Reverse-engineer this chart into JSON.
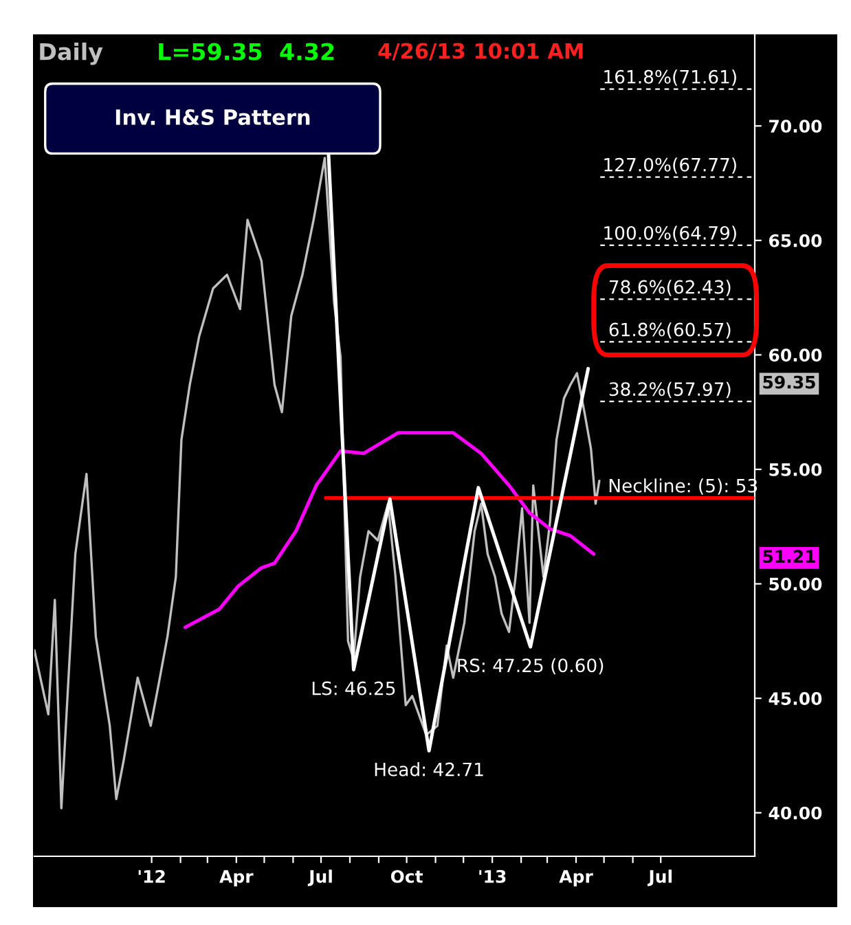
{
  "chart_data": {
    "type": "line",
    "title": "Daily",
    "subtitle": "L=59.35  4.32",
    "annotations": [
      "Inv. H&S Pattern",
      "4/26/13 10:01 AM",
      {
        "text": "161.8%(71.61)",
        "x": "2013-07-11",
        "y": 71.61
      },
      {
        "text": "127.0%(67.77)",
        "x": "2013-07-11",
        "y": 67.77
      },
      {
        "text": "100.0%(64.79)",
        "x": "2013-07-11",
        "y": 64.79
      },
      {
        "text": "78.6%(62.43)",
        "x": "2013-07-11",
        "y": 62.43
      },
      {
        "text": "61.8%(60.57)",
        "x": "2013-07-11",
        "y": 60.57
      },
      {
        "text": "38.2%(57.97)",
        "x": "2013-07-11",
        "y": 57.97
      },
      {
        "text": "Neckline: (5): 53",
        "x": "2013-07-25",
        "y": 53.75
      },
      {
        "text": "LS: 46.25",
        "x": "2012-08-05",
        "y": 46.25
      },
      {
        "text": "Head: 42.71",
        "x": "2012-10-25",
        "y": 42.71
      },
      {
        "text": "RS: 47.25 (0.60)",
        "x": "2013-02-11",
        "y": 47.25
      },
      "59.35",
      "51.21"
    ],
    "series": [
      {
        "color": "#c0c0c0",
        "x": [
          "2011-08-28",
          "2011-09-12",
          "2011-09-19",
          "2011-09-26",
          "2011-10-11",
          "2011-10-23",
          "2011-11-02",
          "2011-11-17",
          "2011-11-24",
          "2011-12-02",
          "2011-12-17",
          "2011-12-31",
          "2012-01-08",
          "2012-01-18",
          "2012-01-27",
          "2012-02-02",
          "2012-02-11",
          "2012-02-21",
          "2012-03-07",
          "2012-03-22",
          "2012-04-05",
          "2012-04-13",
          "2012-04-28",
          "2012-05-12",
          "2012-05-20",
          "2012-05-30",
          "2012-06-11",
          "2012-06-23",
          "2012-07-05",
          "2012-07-15",
          "2012-07-22",
          "2012-07-30",
          "2012-08-05",
          "2012-08-12",
          "2012-08-21",
          "2012-08-31",
          "2012-09-11",
          "2012-09-19",
          "2012-09-30",
          "2012-10-07",
          "2012-10-22",
          "2012-11-03",
          "2012-11-13",
          "2012-11-20",
          "2012-12-02",
          "2012-12-13",
          "2012-12-20",
          "2012-12-27",
          "2013-01-04",
          "2013-01-11",
          "2013-01-19",
          "2013-01-26",
          "2013-02-02",
          "2013-02-10",
          "2013-02-14",
          "2013-02-25",
          "2013-03-04",
          "2013-03-11",
          "2013-03-19",
          "2013-03-26",
          "2013-04-02",
          "2013-04-10",
          "2013-04-17",
          "2013-04-22",
          "2013-04-26"
        ],
        "values": [
          47.1,
          44.3,
          49.3,
          40.2,
          51.3,
          54.8,
          47.7,
          43.8,
          40.6,
          42.3,
          45.9,
          43.8,
          45.5,
          47.7,
          50.3,
          56.3,
          58.7,
          60.8,
          62.9,
          63.5,
          62.0,
          65.9,
          64.1,
          58.7,
          57.5,
          61.7,
          63.5,
          65.9,
          68.6,
          62.3,
          59.9,
          47.5,
          46.7,
          50.3,
          52.3,
          51.9,
          53.5,
          50.3,
          44.7,
          45.1,
          43.4,
          43.8,
          47.3,
          45.9,
          48.3,
          52.3,
          53.5,
          51.3,
          50.3,
          48.7,
          47.9,
          50.3,
          53.3,
          48.3,
          54.3,
          50.3,
          52.7,
          56.3,
          58.1,
          58.7,
          59.2,
          57.5,
          55.9,
          53.5,
          54.5
        ]
      },
      {
        "color": "#ff00ff",
        "x": [
          "2012-02-06",
          "2012-03-14",
          "2012-04-03",
          "2012-04-28",
          "2012-05-12",
          "2012-06-04",
          "2012-06-26",
          "2012-07-22",
          "2012-08-16",
          "2012-09-22",
          "2012-11-20",
          "2012-12-20",
          "2013-01-19",
          "2013-02-10",
          "2013-03-04",
          "2013-03-26",
          "2013-04-20"
        ],
        "values": [
          48.1,
          48.9,
          49.9,
          50.7,
          50.9,
          52.3,
          54.3,
          55.8,
          55.7,
          56.6,
          56.6,
          55.7,
          54.3,
          53.1,
          52.4,
          52.1,
          51.3
        ]
      },
      {
        "color": "#ff0000",
        "x": [
          "2012-07-06",
          "2013-10-08"
        ],
        "values": [
          53.75,
          53.75
        ]
      },
      {
        "color": "#ffffff",
        "x": [
          "2012-07-09",
          "2012-08-05",
          "2012-09-13",
          "2012-10-25",
          "2012-12-17",
          "2013-02-11",
          "2013-04-14"
        ],
        "values": [
          68.8,
          46.25,
          53.7,
          42.71,
          54.2,
          47.25,
          59.4
        ]
      },
      {
        "color": "#ffffff",
        "line_style": "dashed",
        "x": [
          "2013-04-27",
          "2013-10-08"
        ],
        "values": [
          71.61,
          71.61
        ]
      },
      {
        "color": "#ffffff",
        "line_style": "dashed",
        "x": [
          "2013-04-27",
          "2013-10-08"
        ],
        "values": [
          67.77,
          67.77
        ]
      },
      {
        "color": "#ffffff",
        "line_style": "dashed",
        "x": [
          "2013-04-27",
          "2013-10-08"
        ],
        "values": [
          64.79,
          64.79
        ]
      },
      {
        "color": "#ffffff",
        "line_style": "dashed",
        "x": [
          "2013-04-27",
          "2013-10-08"
        ],
        "values": [
          62.43,
          62.43
        ]
      },
      {
        "color": "#ffffff",
        "line_style": "dashed",
        "x": [
          "2013-04-27",
          "2013-10-08"
        ],
        "values": [
          60.57,
          60.57
        ]
      },
      {
        "color": "#ffffff",
        "line_style": "dashed",
        "x": [
          "2013-04-27",
          "2013-10-08"
        ],
        "values": [
          57.97,
          57.97
        ]
      }
    ],
    "xlim": [
      "2011-08-28",
      "2013-10-10"
    ],
    "xticks": [
      {
        "value": "2012-01-01",
        "label": "'12"
      },
      {
        "value": "2012-02-01",
        "label": null
      },
      {
        "value": "2012-03-01",
        "label": null
      },
      {
        "value": "2012-04-01",
        "label": "Apr"
      },
      {
        "value": "2012-05-01",
        "label": null
      },
      {
        "value": "2012-06-01",
        "label": null
      },
      {
        "value": "2012-07-01",
        "label": "Jul"
      },
      {
        "value": "2012-08-01",
        "label": null
      },
      {
        "value": "2012-09-01",
        "label": null
      },
      {
        "value": "2012-10-01",
        "label": "Oct"
      },
      {
        "value": "2012-11-01",
        "label": null
      },
      {
        "value": "2012-12-01",
        "label": null
      },
      {
        "value": "2013-01-01",
        "label": "'13"
      },
      {
        "value": "2013-02-01",
        "label": null
      },
      {
        "value": "2013-03-01",
        "label": null
      },
      {
        "value": "2013-04-01",
        "label": "Apr"
      },
      {
        "value": "2013-05-01",
        "label": null
      },
      {
        "value": "2013-06-01",
        "label": null
      },
      {
        "value": "2013-07-01",
        "label": "Jul"
      }
    ],
    "ylim": [
      38.1,
      74.0
    ],
    "yticks": [
      {
        "value": 40,
        "label": "40.00"
      },
      {
        "value": 45,
        "label": "45.00"
      },
      {
        "value": 50,
        "label": "50.00"
      },
      {
        "value": 55,
        "label": "55.00"
      },
      {
        "value": 60,
        "label": "60.00"
      },
      {
        "value": 65,
        "label": "65.00"
      },
      {
        "value": 70,
        "label": "70.00"
      }
    ],
    "line_style": "solid"
  }
}
